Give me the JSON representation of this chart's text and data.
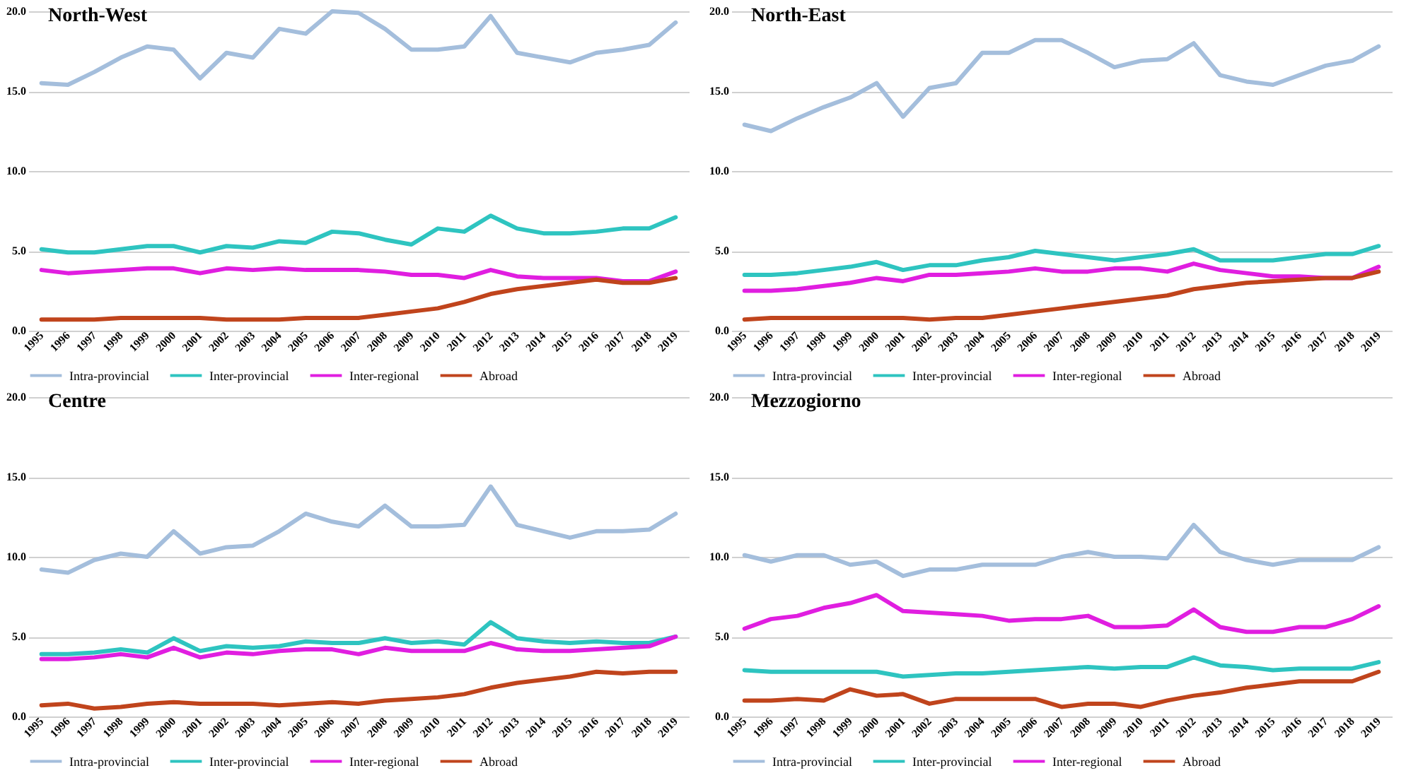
{
  "chart_data": [
    {
      "type": "line",
      "title": "North-West",
      "categories": [
        "1995",
        "1996",
        "1997",
        "1998",
        "1999",
        "2000",
        "2001",
        "2002",
        "2003",
        "2004",
        "2005",
        "2006",
        "2007",
        "2008",
        "2009",
        "2010",
        "2011",
        "2012",
        "2013",
        "2014",
        "2015",
        "2016",
        "2017",
        "2018",
        "2019"
      ],
      "ylim": [
        0,
        20
      ],
      "yticks": [
        {
          "value": 0,
          "label": "0.0"
        },
        {
          "value": 5,
          "label": "5.0"
        },
        {
          "value": 10,
          "label": "10.0"
        },
        {
          "value": 15,
          "label": "15.0"
        },
        {
          "value": 20,
          "label": "20.0"
        }
      ],
      "grid": "y",
      "legend": "bottom",
      "line_style": "solid",
      "series": [
        {
          "name": "Intra-provincial",
          "color": "#a4bedc",
          "values": [
            15.5,
            15.4,
            16.2,
            17.1,
            17.8,
            17.6,
            15.8,
            17.4,
            17.1,
            18.9,
            18.6,
            20,
            19.9,
            18.9,
            17.6,
            17.6,
            17.8,
            19.7,
            17.4,
            17.1,
            16.8,
            17.4,
            17.6,
            17.9,
            19.3
          ]
        },
        {
          "name": "Inter-provincial",
          "color": "#2ec4c0",
          "values": [
            5.1,
            4.9,
            4.9,
            5.1,
            5.3,
            5.3,
            4.9,
            5.3,
            5.2,
            5.6,
            5.5,
            6.2,
            6.1,
            5.7,
            5.4,
            6.4,
            6.2,
            7.2,
            6.4,
            6.1,
            6.1,
            6.2,
            6.4,
            6.4,
            7.1
          ]
        },
        {
          "name": "Inter-regional",
          "color": "#e01ee0",
          "values": [
            3.8,
            3.6,
            3.7,
            3.8,
            3.9,
            3.9,
            3.6,
            3.9,
            3.8,
            3.9,
            3.8,
            3.8,
            3.8,
            3.7,
            3.5,
            3.5,
            3.3,
            3.8,
            3.4,
            3.3,
            3.3,
            3.3,
            3.1,
            3.1,
            3.7
          ]
        },
        {
          "name": "Abroad",
          "color": "#c0441c",
          "values": [
            0.7,
            0.7,
            0.7,
            0.8,
            0.8,
            0.8,
            0.8,
            0.7,
            0.7,
            0.7,
            0.8,
            0.8,
            0.8,
            1.0,
            1.2,
            1.4,
            1.8,
            2.3,
            2.6,
            2.8,
            3.0,
            3.2,
            3.0,
            3.0,
            3.3
          ]
        }
      ]
    },
    {
      "type": "line",
      "title": "North-East",
      "categories": [
        "1995",
        "1996",
        "1997",
        "1998",
        "1999",
        "2000",
        "2001",
        "2002",
        "2003",
        "2004",
        "2005",
        "2006",
        "2007",
        "2008",
        "2009",
        "2010",
        "2011",
        "2012",
        "2013",
        "2014",
        "2015",
        "2016",
        "2017",
        "2018",
        "2019"
      ],
      "ylim": [
        0,
        20
      ],
      "yticks": [
        {
          "value": 0,
          "label": "0.0"
        },
        {
          "value": 5,
          "label": "5.0"
        },
        {
          "value": 10,
          "label": "10.0"
        },
        {
          "value": 15,
          "label": "15.0"
        },
        {
          "value": 20,
          "label": "20.0"
        }
      ],
      "grid": "y",
      "legend": "bottom",
      "line_style": "solid",
      "series": [
        {
          "name": "Intra-provincial",
          "color": "#a4bedc",
          "values": [
            12.9,
            12.5,
            13.3,
            14.0,
            14.6,
            15.5,
            13.4,
            15.2,
            15.5,
            17.4,
            17.4,
            18.2,
            18.2,
            17.4,
            16.5,
            16.9,
            17.0,
            18.0,
            16.0,
            15.6,
            15.4,
            16.0,
            16.6,
            16.9,
            17.8
          ]
        },
        {
          "name": "Inter-provincial",
          "color": "#2ec4c0",
          "values": [
            3.5,
            3.5,
            3.6,
            3.8,
            4.0,
            4.3,
            3.8,
            4.1,
            4.1,
            4.4,
            4.6,
            5.0,
            4.8,
            4.6,
            4.4,
            4.6,
            4.8,
            5.1,
            4.4,
            4.4,
            4.4,
            4.6,
            4.8,
            4.8,
            5.3
          ]
        },
        {
          "name": "Inter-regional",
          "color": "#e01ee0",
          "values": [
            2.5,
            2.5,
            2.6,
            2.8,
            3.0,
            3.3,
            3.1,
            3.5,
            3.5,
            3.6,
            3.7,
            3.9,
            3.7,
            3.7,
            3.9,
            3.9,
            3.7,
            4.2,
            3.8,
            3.6,
            3.4,
            3.4,
            3.3,
            3.3,
            4.0
          ]
        },
        {
          "name": "Abroad",
          "color": "#c0441c",
          "values": [
            0.7,
            0.8,
            0.8,
            0.8,
            0.8,
            0.8,
            0.8,
            0.7,
            0.8,
            0.8,
            1.0,
            1.2,
            1.4,
            1.6,
            1.8,
            2.0,
            2.2,
            2.6,
            2.8,
            3.0,
            3.1,
            3.2,
            3.3,
            3.3,
            3.7
          ]
        }
      ]
    },
    {
      "type": "line",
      "title": "Centre",
      "categories": [
        "1995",
        "1996",
        "1997",
        "1998",
        "1999",
        "2000",
        "2001",
        "2002",
        "2003",
        "2004",
        "2005",
        "2006",
        "2007",
        "2008",
        "2009",
        "2010",
        "2011",
        "2012",
        "2013",
        "2014",
        "2015",
        "2016",
        "2017",
        "2018",
        "2019"
      ],
      "ylim": [
        0,
        20
      ],
      "yticks": [
        {
          "value": 0,
          "label": "0.0"
        },
        {
          "value": 5,
          "label": "5.0"
        },
        {
          "value": 10,
          "label": "10.0"
        },
        {
          "value": 15,
          "label": "15.0"
        },
        {
          "value": 20,
          "label": "20.0"
        }
      ],
      "grid": "y",
      "legend": "bottom",
      "line_style": "solid",
      "series": [
        {
          "name": "Intra-provincial",
          "color": "#a4bedc",
          "values": [
            9.2,
            9.0,
            9.8,
            10.2,
            10.0,
            11.6,
            10.2,
            10.6,
            10.7,
            11.6,
            12.7,
            12.2,
            11.9,
            13.2,
            11.9,
            11.9,
            12.0,
            14.4,
            12.0,
            11.6,
            11.2,
            11.6,
            11.6,
            11.7,
            12.7
          ]
        },
        {
          "name": "Inter-provincial",
          "color": "#2ec4c0",
          "values": [
            3.9,
            3.9,
            4.0,
            4.2,
            4.0,
            4.9,
            4.1,
            4.4,
            4.3,
            4.4,
            4.7,
            4.6,
            4.6,
            4.9,
            4.6,
            4.7,
            4.5,
            5.9,
            4.9,
            4.7,
            4.6,
            4.7,
            4.6,
            4.6,
            5.0
          ]
        },
        {
          "name": "Inter-regional",
          "color": "#e01ee0",
          "values": [
            3.6,
            3.6,
            3.7,
            3.9,
            3.7,
            4.3,
            3.7,
            4.0,
            3.9,
            4.1,
            4.2,
            4.2,
            3.9,
            4.3,
            4.1,
            4.1,
            4.1,
            4.6,
            4.2,
            4.1,
            4.1,
            4.2,
            4.3,
            4.4,
            5.0
          ]
        },
        {
          "name": "Abroad",
          "color": "#c0441c",
          "values": [
            0.7,
            0.8,
            0.5,
            0.6,
            0.8,
            0.9,
            0.8,
            0.8,
            0.8,
            0.7,
            0.8,
            0.9,
            0.8,
            1.0,
            1.1,
            1.2,
            1.4,
            1.8,
            2.1,
            2.3,
            2.5,
            2.8,
            2.7,
            2.8,
            2.8
          ]
        }
      ]
    },
    {
      "type": "line",
      "title": "Mezzogiorno",
      "categories": [
        "1995",
        "1996",
        "1997",
        "1998",
        "1999",
        "2000",
        "2001",
        "2002",
        "2003",
        "2004",
        "2005",
        "2006",
        "2007",
        "2008",
        "2009",
        "2010",
        "2011",
        "2012",
        "2013",
        "2014",
        "2015",
        "2016",
        "2017",
        "2018",
        "2019"
      ],
      "ylim": [
        0,
        20
      ],
      "yticks": [
        {
          "value": 0,
          "label": "0.0"
        },
        {
          "value": 5,
          "label": "5.0"
        },
        {
          "value": 10,
          "label": "10.0"
        },
        {
          "value": 15,
          "label": "15.0"
        },
        {
          "value": 20,
          "label": "20.0"
        }
      ],
      "grid": "y",
      "legend": "bottom",
      "line_style": "solid",
      "series": [
        {
          "name": "Intra-provincial",
          "color": "#a4bedc",
          "values": [
            10.1,
            9.7,
            10.1,
            10.1,
            9.5,
            9.7,
            8.8,
            9.2,
            9.2,
            9.5,
            9.5,
            9.5,
            10.0,
            10.3,
            10.0,
            10.0,
            9.9,
            12.0,
            10.3,
            9.8,
            9.5,
            9.8,
            9.8,
            9.8,
            10.6
          ]
        },
        {
          "name": "Inter-provincial",
          "color": "#2ec4c0",
          "values": [
            2.9,
            2.8,
            2.8,
            2.8,
            2.8,
            2.8,
            2.5,
            2.6,
            2.7,
            2.7,
            2.8,
            2.9,
            3.0,
            3.1,
            3.0,
            3.1,
            3.1,
            3.7,
            3.2,
            3.1,
            2.9,
            3.0,
            3.0,
            3.0,
            3.4
          ]
        },
        {
          "name": "Inter-regional",
          "color": "#e01ee0",
          "values": [
            5.5,
            6.1,
            6.3,
            6.8,
            7.1,
            7.6,
            6.6,
            6.5,
            6.4,
            6.3,
            6.0,
            6.1,
            6.1,
            6.3,
            5.6,
            5.6,
            5.7,
            6.7,
            5.6,
            5.3,
            5.3,
            5.6,
            5.6,
            6.1,
            6.9
          ]
        },
        {
          "name": "Abroad",
          "color": "#c0441c",
          "values": [
            1.0,
            1.0,
            1.1,
            1.0,
            1.7,
            1.3,
            1.4,
            0.8,
            1.1,
            1.1,
            1.1,
            1.1,
            0.6,
            0.8,
            0.8,
            0.6,
            1.0,
            1.3,
            1.5,
            1.8,
            2.0,
            2.2,
            2.2,
            2.2,
            2.8
          ]
        }
      ]
    }
  ]
}
